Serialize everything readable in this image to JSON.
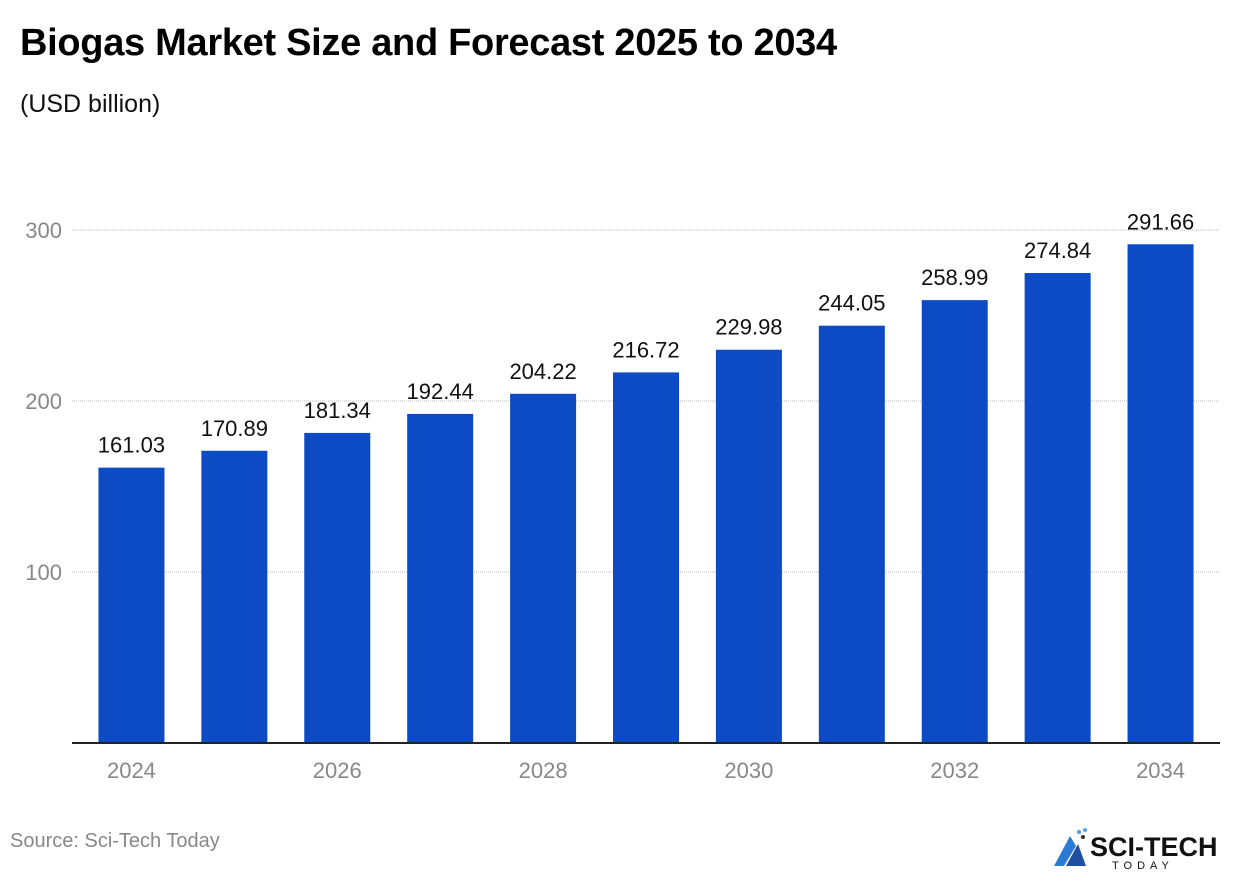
{
  "title": "Biogas Market Size and Forecast 2025 to 2034",
  "subtitle": "(USD billion)",
  "source": "Source: Sci-Tech Today",
  "logo": {
    "text_main": "SCI-TECH",
    "text_sub": "TODAY"
  },
  "colors": {
    "bar": "#0d4bc4",
    "grid": "#bbbbbb",
    "tick_text": "#888888",
    "label_text": "#111111"
  },
  "chart_data": {
    "type": "bar",
    "title": "Biogas Market Size and Forecast 2025 to 2034",
    "subtitle": "(USD billion)",
    "categories": [
      "2024",
      "2025",
      "2026",
      "2027",
      "2028",
      "2029",
      "2030",
      "2031",
      "2032",
      "2033",
      "2034"
    ],
    "x_tick_labels": [
      "2024",
      "",
      "2026",
      "",
      "2028",
      "",
      "2030",
      "",
      "2032",
      "",
      "2034"
    ],
    "values": [
      161.03,
      170.89,
      181.34,
      192.44,
      204.22,
      216.72,
      229.98,
      244.05,
      258.99,
      274.84,
      291.66
    ],
    "data_labels": [
      "161.03",
      "170.89",
      "181.34",
      "192.44",
      "204.22",
      "216.72",
      "229.98",
      "244.05",
      "258.99",
      "274.84",
      "291.66"
    ],
    "y_ticks": [
      100,
      200,
      300
    ],
    "ylim": [
      0,
      300
    ],
    "grid": true,
    "legend": "none"
  }
}
